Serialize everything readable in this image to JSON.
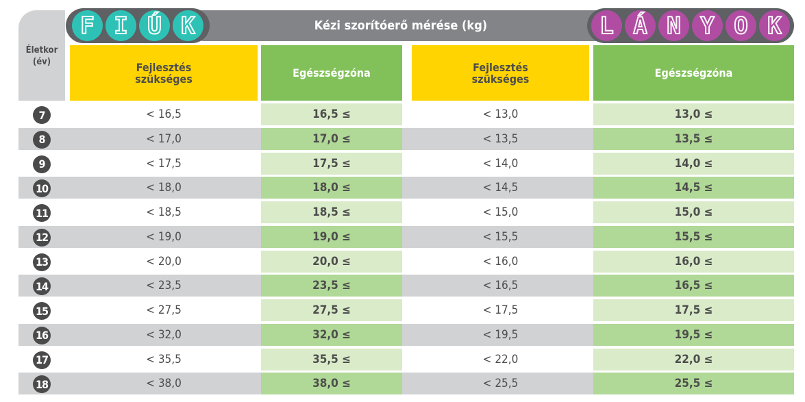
{
  "header": {
    "title": "Kézi szorítóerő mérése (kg)",
    "age_label_line1": "Életkor",
    "age_label_line2": "(év)",
    "boys_letters": [
      "F",
      "I",
      "Ú",
      "K"
    ],
    "girls_letters": [
      "L",
      "Á",
      "N",
      "Y",
      "O",
      "K"
    ],
    "boys_word": "FIÚK",
    "girls_word": "LÁNYOK"
  },
  "columns": {
    "boys_needs_line1": "Fejlesztés",
    "boys_needs_line2": "szükséges",
    "boys_health": "Egészségzóna",
    "girls_needs_line1": "Fejlesztés",
    "girls_needs_line2": "szükséges",
    "girls_health": "Egészségzóna"
  },
  "colors": {
    "teal": "#2ec2b6",
    "purple": "#b04da3",
    "yellow": "#ffd400",
    "green": "#82c15a",
    "row_gray": "#d1d2d4",
    "light_green": "#d9ebc8",
    "mid_green": "#b0d896"
  },
  "rows": [
    {
      "age": "7",
      "boys_needs": "< 16,5",
      "boys_health": "16,5 ≤",
      "girls_needs": "< 13,0",
      "girls_health": "13,0 ≤"
    },
    {
      "age": "8",
      "boys_needs": "< 17,0",
      "boys_health": "17,0 ≤",
      "girls_needs": "< 13,5",
      "girls_health": "13,5 ≤"
    },
    {
      "age": "9",
      "boys_needs": "< 17,5",
      "boys_health": "17,5 ≤",
      "girls_needs": "< 14,0",
      "girls_health": "14,0 ≤"
    },
    {
      "age": "10",
      "boys_needs": "< 18,0",
      "boys_health": "18,0 ≤",
      "girls_needs": "< 14,5",
      "girls_health": "14,5 ≤"
    },
    {
      "age": "11",
      "boys_needs": "< 18,5",
      "boys_health": "18,5 ≤",
      "girls_needs": "< 15,0",
      "girls_health": "15,0 ≤"
    },
    {
      "age": "12",
      "boys_needs": "< 19,0",
      "boys_health": "19,0 ≤",
      "girls_needs": "< 15,5",
      "girls_health": "15,5 ≤"
    },
    {
      "age": "13",
      "boys_needs": "< 20,0",
      "boys_health": "20,0 ≤",
      "girls_needs": "< 16,0",
      "girls_health": "16,0 ≤"
    },
    {
      "age": "14",
      "boys_needs": "< 23,5",
      "boys_health": "23,5 ≤",
      "girls_needs": "< 16,5",
      "girls_health": "16,5 ≤"
    },
    {
      "age": "15",
      "boys_needs": "< 27,5",
      "boys_health": "27,5 ≤",
      "girls_needs": "< 17,5",
      "girls_health": "17,5 ≤"
    },
    {
      "age": "16",
      "boys_needs": "< 32,0",
      "boys_health": "32,0 ≤",
      "girls_needs": "< 19,5",
      "girls_health": "19,5 ≤"
    },
    {
      "age": "17",
      "boys_needs": "< 35,5",
      "boys_health": "35,5 ≤",
      "girls_needs": "< 22,0",
      "girls_health": "22,0 ≤"
    },
    {
      "age": "18",
      "boys_needs": "< 38,0",
      "boys_health": "38,0 ≤",
      "girls_needs": "< 25,5",
      "girls_health": "25,5 ≤"
    }
  ]
}
